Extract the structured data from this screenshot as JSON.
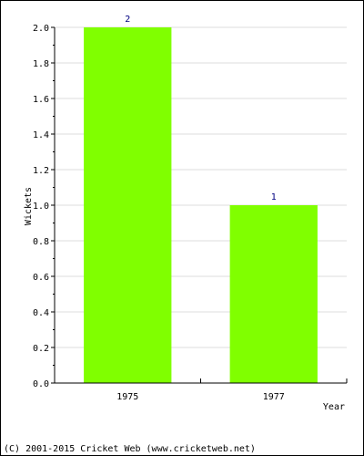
{
  "chart_data": {
    "type": "bar",
    "categories": [
      "1975",
      "1977"
    ],
    "series": [
      {
        "values": [
          2,
          1
        ]
      }
    ],
    "data_labels": [
      "2",
      "1"
    ],
    "ylabel": "Wickets",
    "xlabel": "Year",
    "ylim": [
      0,
      2.0
    ],
    "yticks": [
      "0.0",
      "0.2",
      "0.4",
      "0.6",
      "0.8",
      "1.0",
      "1.2",
      "1.4",
      "1.6",
      "1.8",
      "2.0"
    ],
    "grid": true,
    "bar_color": "#80ff00",
    "data_label_color": "#000080"
  },
  "footer": {
    "copyright": "(C) 2001-2015 Cricket Web (www.cricketweb.net)"
  }
}
